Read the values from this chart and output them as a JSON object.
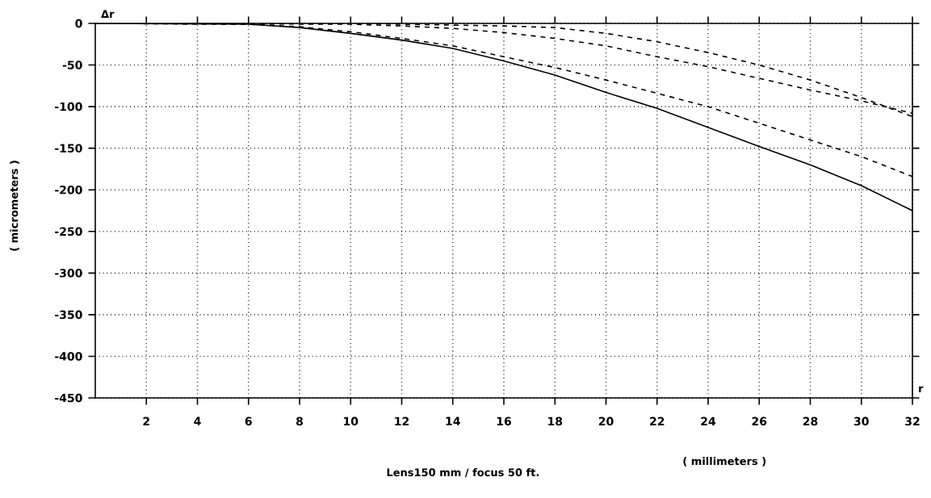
{
  "chart_data": {
    "type": "line",
    "xlabel": "( millimeters )",
    "ylabel": "( micrometers )",
    "annotations": [
      "Δr",
      "r",
      "Lens150 mm / focus 50 ft."
    ],
    "xlim": [
      0,
      32
    ],
    "ylim": [
      -450,
      0
    ],
    "xticks": [
      2,
      4,
      6,
      8,
      10,
      12,
      14,
      16,
      18,
      20,
      22,
      24,
      26,
      28,
      30,
      32
    ],
    "yticks": [
      -450,
      -400,
      -350,
      -300,
      -250,
      -200,
      -150,
      -100,
      -50,
      0
    ],
    "grid": true,
    "marker": "none",
    "series": [
      {
        "color": "#000000",
        "line_style": "solid",
        "x": [
          0,
          6,
          8,
          10,
          12,
          14,
          16,
          18,
          20,
          22,
          24,
          26,
          28,
          30,
          32
        ],
        "values": [
          0,
          -1,
          -5,
          -12,
          -20,
          -30,
          -45,
          -62,
          -83,
          -102,
          -125,
          -148,
          -170,
          -195,
          -225
        ]
      },
      {
        "color": "#000000",
        "line_style": "dashed",
        "x": [
          0,
          6,
          8,
          10,
          12,
          14,
          16,
          18,
          20,
          22,
          24,
          26,
          28,
          30,
          32
        ],
        "values": [
          0,
          -1,
          -4,
          -10,
          -18,
          -27,
          -40,
          -53,
          -68,
          -84,
          -100,
          -120,
          -140,
          -160,
          -184
        ]
      },
      {
        "color": "#000000",
        "line_style": "dashed",
        "x": [
          0,
          10,
          12,
          14,
          16,
          18,
          20,
          22,
          24,
          26,
          28,
          30,
          32
        ],
        "values": [
          0,
          0,
          -1,
          -2,
          -3,
          -5,
          -12,
          -22,
          -35,
          -50,
          -68,
          -89,
          -112
        ]
      },
      {
        "color": "#000000",
        "line_style": "dashed",
        "x": [
          0,
          10,
          12,
          14,
          16,
          18,
          20,
          22,
          24,
          26,
          28,
          30,
          32
        ],
        "values": [
          0,
          -1,
          -3,
          -6,
          -11,
          -18,
          -27,
          -40,
          -52,
          -66,
          -80,
          -93,
          -108
        ]
      }
    ]
  }
}
